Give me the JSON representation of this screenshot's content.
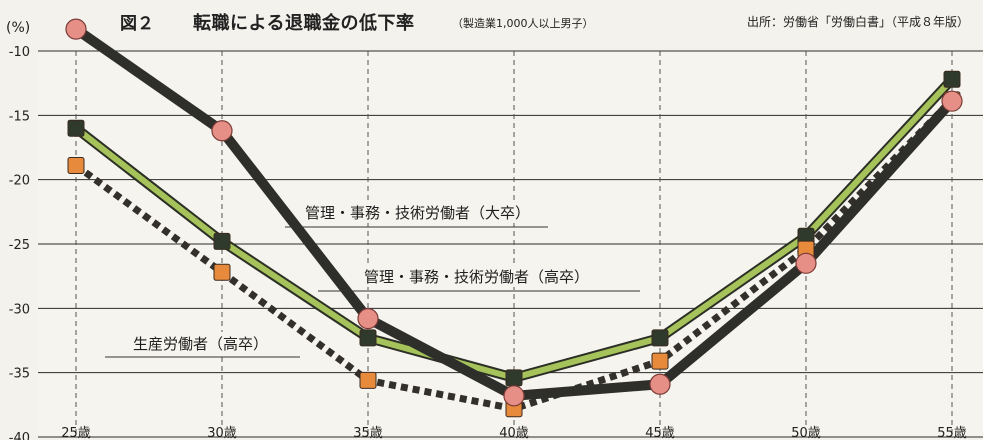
{
  "header": {
    "figure_no": "図２",
    "title": "転職による退職金の低下率",
    "subtitle": "（製造業1,000人以上男子）",
    "source": "出所：労働省「労働白書」（平成８年版）",
    "unit": "(%)"
  },
  "chart_data": {
    "type": "line",
    "title": "転職による退職金の低下率",
    "subtitle": "（製造業1,000人以上男子）",
    "categories": [
      "25歳",
      "30歳",
      "35歳",
      "40歳",
      "45歳",
      "50歳",
      "55歳"
    ],
    "ylim": [
      -40,
      -10
    ],
    "yticks": [
      -10,
      -15,
      -20,
      -25,
      -30,
      -35,
      -40
    ],
    "grid": true,
    "series": [
      {
        "name": "管理・事務・技術労働者（大卒）",
        "values": [
          -8.3,
          -16.2,
          -30.8,
          -36.8,
          -35.9,
          -26.5,
          -13.9
        ],
        "line_color": "#2e2e2b",
        "marker": "circle",
        "marker_color": "#e58f86",
        "dashed": false
      },
      {
        "name": "管理・事務・技術労働者（高卒）",
        "values": [
          -16.0,
          -24.8,
          -32.3,
          -35.4,
          -32.3,
          -24.4,
          -12.2
        ],
        "line_color": "#a5c35a",
        "marker": "square",
        "marker_color": "#2f3a2c",
        "dashed": false
      },
      {
        "name": "生産労働者（高卒）",
        "values": [
          -18.9,
          -27.2,
          -35.6,
          -37.8,
          -34.1,
          -25.4,
          -13.8
        ],
        "line_color": "#33302c",
        "marker": "square",
        "marker_color": "#e88a3c",
        "dashed": true
      }
    ]
  }
}
